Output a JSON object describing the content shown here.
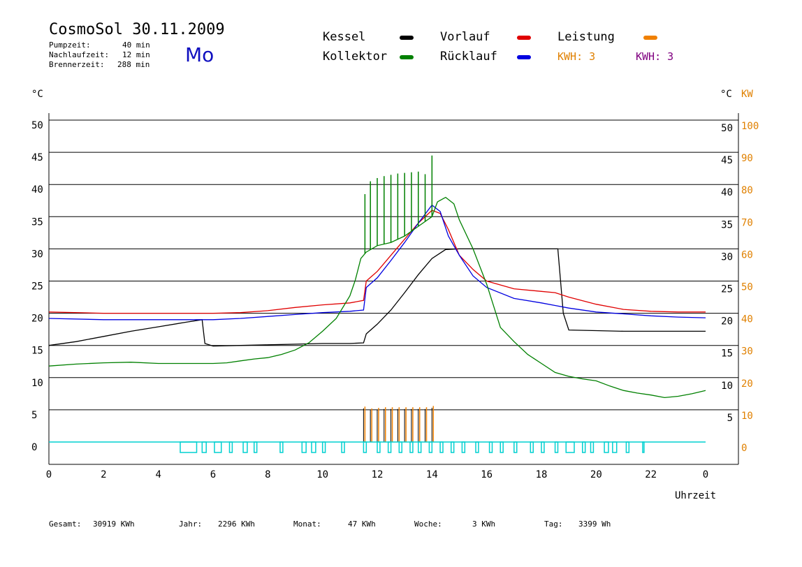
{
  "header": {
    "title": "CosmoSol 30.11.2009",
    "day": "Mo",
    "info": [
      {
        "label": "Pumpzeit:",
        "value": "40 min"
      },
      {
        "label": "Nachlaufzeit:",
        "value": "12 min"
      },
      {
        "label": "Brennerzeit:",
        "value": "288 min"
      }
    ]
  },
  "legend": {
    "items": [
      {
        "label": "Kessel",
        "color": "#000000"
      },
      {
        "label": "Vorlauf",
        "color": "#e00000"
      },
      {
        "label": "Leistung",
        "color": "#f08000"
      },
      {
        "label": "Kollektor",
        "color": "#008000"
      },
      {
        "label": "Rücklauf",
        "color": "#0000e0"
      }
    ],
    "kwh1": "KWH: 3",
    "kwh1_color": "#e08000",
    "kwh2": "KWH: 3",
    "kwh2_color": "#800080"
  },
  "axes": {
    "y_left_unit": "°C",
    "y_right_unit": "°C",
    "y_right2_unit": "KW",
    "x_label": "Uhrzeit"
  },
  "footer": {
    "gesamt_label": "Gesamt:",
    "gesamt_value": "30919 KWh",
    "jahr_label": "Jahr:",
    "jahr_value": "2296 KWh",
    "monat_label": "Monat:",
    "monat_value": "47 KWh",
    "woche_label": "Woche:",
    "woche_value": "3 KWh",
    "tag_label": "Tag:",
    "tag_value": "3399 Wh"
  },
  "chart_data": {
    "type": "line",
    "xlabel": "Uhrzeit",
    "ylabel": "°C",
    "xlim": [
      0,
      24
    ],
    "ylim": [
      0,
      50
    ],
    "y2lim": [
      0,
      100
    ],
    "x_ticks": [
      "0",
      "2",
      "4",
      "6",
      "8",
      "10",
      "12",
      "14",
      "16",
      "18",
      "20",
      "22",
      "0"
    ],
    "y_ticks": [
      "0",
      "5",
      "10",
      "15",
      "20",
      "25",
      "30",
      "35",
      "40",
      "45",
      "50"
    ],
    "y_right_ticks": [
      "5",
      "10",
      "15",
      "20",
      "25",
      "30",
      "35",
      "40",
      "45",
      "50"
    ],
    "y2_ticks": [
      "0",
      "10",
      "20",
      "30",
      "40",
      "50",
      "60",
      "70",
      "80",
      "90",
      "100"
    ],
    "grid": true,
    "series": [
      {
        "name": "Kessel",
        "color": "#000000",
        "x": [
          0,
          1,
          2,
          3,
          4,
          5,
          5.6,
          5.7,
          6,
          7,
          8,
          9,
          10,
          11,
          11.5,
          11.6,
          12,
          12.5,
          13,
          13.5,
          14,
          14.5,
          15,
          16,
          17,
          18,
          18.6,
          18.7,
          18.8,
          19,
          20,
          21,
          22,
          23,
          24
        ],
        "y": [
          15,
          15.6,
          16.4,
          17.2,
          17.9,
          18.6,
          19,
          15.3,
          14.9,
          15,
          15.1,
          15.2,
          15.3,
          15.3,
          15.4,
          16.8,
          18.3,
          20.5,
          23.2,
          26,
          28.5,
          29.9,
          30,
          30,
          30,
          30,
          30,
          25,
          20,
          17.4,
          17.3,
          17.2,
          17.2,
          17.2,
          17.2
        ]
      },
      {
        "name": "Vorlauf",
        "color": "#e00000",
        "x": [
          0,
          2,
          4,
          6,
          7,
          8,
          9,
          10,
          11,
          11.5,
          11.6,
          12,
          12.5,
          13,
          13.5,
          14,
          14.3,
          14.6,
          15,
          15.5,
          16,
          17,
          18,
          18.5,
          19,
          20,
          21,
          22,
          23,
          24
        ],
        "y": [
          20.2,
          20,
          20,
          20,
          20.1,
          20.4,
          20.9,
          21.3,
          21.6,
          22,
          25,
          26.5,
          29,
          31.5,
          34,
          36,
          35.5,
          33,
          29,
          26.8,
          25,
          23.8,
          23.4,
          23.2,
          22.5,
          21.4,
          20.6,
          20.3,
          20.2,
          20.2
        ]
      },
      {
        "name": "Rücklauf",
        "color": "#0000e0",
        "x": [
          0,
          2,
          4,
          6,
          7,
          8,
          9,
          10,
          11,
          11.5,
          11.6,
          12,
          12.5,
          13,
          13.5,
          14,
          14.3,
          14.6,
          15,
          15.5,
          16,
          17,
          18,
          18.5,
          19,
          20,
          21,
          22,
          23,
          24
        ],
        "y": [
          19.2,
          19,
          19,
          19,
          19.2,
          19.5,
          19.8,
          20.1,
          20.3,
          20.5,
          24,
          25.5,
          28.2,
          31,
          34,
          36.8,
          35.8,
          32,
          29,
          25.8,
          24,
          22.3,
          21.6,
          21.2,
          20.8,
          20.2,
          19.9,
          19.6,
          19.4,
          19.3
        ]
      },
      {
        "name": "Kollektor",
        "color": "#008000",
        "x": [
          0,
          1,
          2,
          3,
          4,
          5,
          6,
          6.5,
          7,
          7.5,
          8,
          8.5,
          9,
          9.5,
          10,
          10.5,
          11,
          11.2,
          11.4,
          11.6,
          12,
          12.5,
          13,
          13.5,
          14,
          14.2,
          14.5,
          14.8,
          15,
          15.5,
          16,
          16.5,
          17,
          17.5,
          18,
          18.5,
          19,
          19.5,
          20,
          20.5,
          21,
          21.5,
          22,
          22.5,
          23,
          23.5,
          24
        ],
        "y": [
          11.8,
          12.1,
          12.3,
          12.4,
          12.2,
          12.2,
          12.2,
          12.3,
          12.6,
          12.9,
          13.1,
          13.6,
          14.3,
          15.4,
          17.2,
          19.2,
          22.7,
          25.2,
          28.5,
          29.5,
          30.5,
          31,
          32,
          33.5,
          35,
          37.3,
          38,
          37,
          34.5,
          30,
          24.5,
          17.8,
          15.6,
          13.6,
          12.2,
          10.8,
          10.2,
          9.8,
          9.5,
          8.7,
          8,
          7.6,
          7.3,
          6.9,
          7.1,
          7.5,
          8
        ]
      }
    ],
    "collector_spikes": {
      "x": [
        11.55,
        11.75,
        12.0,
        12.25,
        12.5,
        12.75,
        13.0,
        13.25,
        13.5,
        13.75,
        14.0
      ],
      "y": [
        38.5,
        40.5,
        41,
        41.3,
        41.5,
        41.7,
        41.8,
        41.9,
        42,
        41.6,
        44.5
      ]
    },
    "leistung_peaks_kw": {
      "x": [
        11.55,
        11.8,
        12.05,
        12.3,
        12.55,
        12.8,
        13.05,
        13.3,
        13.55,
        13.8,
        14.05
      ],
      "y": [
        11,
        10.4,
        10.6,
        10.8,
        10.8,
        10.8,
        10.8,
        10.8,
        10.8,
        10.8,
        11.2
      ]
    },
    "pump_on_intervals": [
      [
        4.8,
        5.4
      ],
      [
        5.6,
        5.75
      ],
      [
        6.05,
        6.3
      ],
      [
        6.6,
        6.7
      ],
      [
        7.1,
        7.25
      ],
      [
        7.5,
        7.6
      ],
      [
        8.45,
        8.55
      ],
      [
        9.25,
        9.4
      ],
      [
        9.6,
        9.75
      ],
      [
        10.0,
        10.1
      ],
      [
        10.7,
        10.8
      ],
      [
        11.5,
        11.6
      ],
      [
        12.0,
        12.1
      ],
      [
        12.4,
        12.5
      ],
      [
        12.8,
        12.9
      ],
      [
        13.2,
        13.3
      ],
      [
        13.5,
        13.6
      ],
      [
        13.9,
        14.0
      ],
      [
        14.3,
        14.4
      ],
      [
        14.7,
        14.8
      ],
      [
        15.1,
        15.2
      ],
      [
        15.6,
        15.7
      ],
      [
        16.1,
        16.2
      ],
      [
        16.5,
        16.6
      ],
      [
        17.0,
        17.1
      ],
      [
        17.6,
        17.7
      ],
      [
        18.0,
        18.1
      ],
      [
        18.5,
        18.6
      ],
      [
        18.9,
        19.2
      ],
      [
        19.5,
        19.6
      ],
      [
        19.8,
        19.9
      ],
      [
        20.3,
        20.45
      ],
      [
        20.6,
        20.75
      ],
      [
        21.1,
        21.2
      ],
      [
        21.7,
        21.75
      ]
    ]
  }
}
